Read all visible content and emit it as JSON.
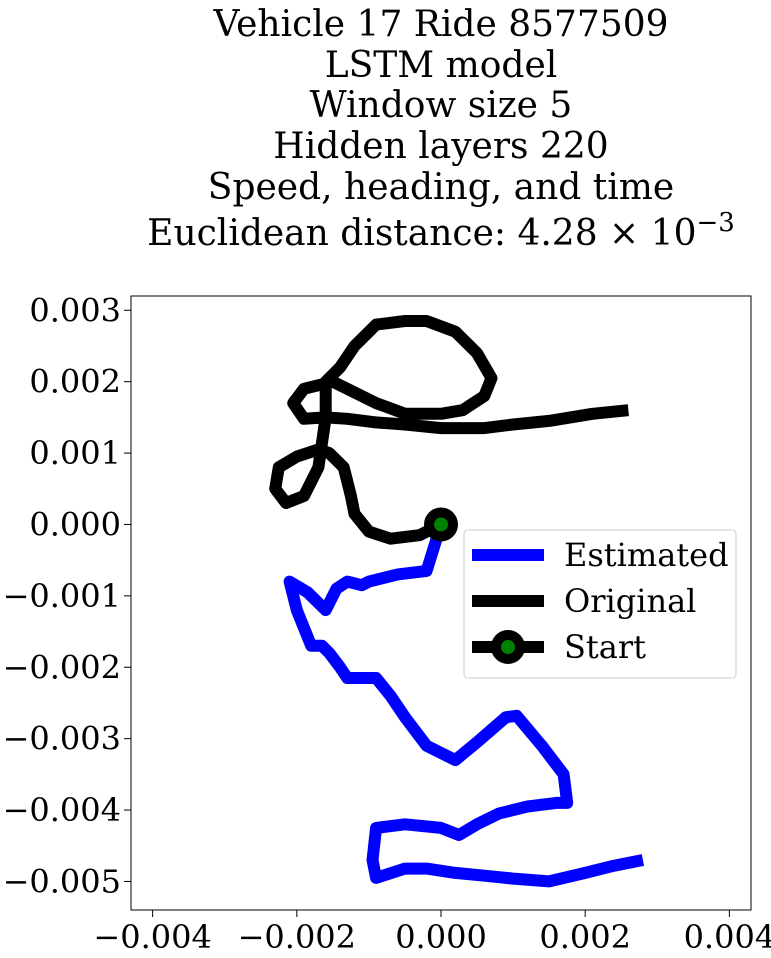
{
  "chart_data": {
    "type": "line",
    "title_lines": [
      "Vehicle 17 Ride 8577509",
      "LSTM model",
      "Window size 5",
      "Hidden layers 220",
      "Speed, heading, and time"
    ],
    "title_distance_prefix": "Euclidean distance: 4.28 × 10",
    "title_distance_exponent": "−3",
    "xlabel": "",
    "ylabel": "",
    "xlim": [
      -0.0043,
      0.0043
    ],
    "ylim": [
      -0.0054,
      0.0032
    ],
    "x_ticks": [
      -0.004,
      -0.002,
      0.0,
      0.002,
      0.004
    ],
    "x_tick_labels": [
      "−0.004",
      "−0.002",
      "0.000",
      "0.002",
      "0.004"
    ],
    "y_ticks": [
      0.003,
      0.002,
      0.001,
      0.0,
      -0.001,
      -0.002,
      -0.003,
      -0.004,
      -0.005
    ],
    "y_tick_labels": [
      "0.003",
      "0.002",
      "0.001",
      "0.000",
      "−0.001",
      "−0.002",
      "−0.003",
      "−0.004",
      "−0.005"
    ],
    "grid": false,
    "legend_position": "center-right",
    "series": [
      {
        "name": "Estimated",
        "color": "#0000ff",
        "points": [
          [
            0.0,
            0.0
          ],
          [
            -0.0002,
            -0.00065
          ],
          [
            -0.0006,
            -0.0007
          ],
          [
            -0.001,
            -0.0008
          ],
          [
            -0.0011,
            -0.00085
          ],
          [
            -0.0013,
            -0.0008
          ],
          [
            -0.00145,
            -0.0009
          ],
          [
            -0.0016,
            -0.0012
          ],
          [
            -0.00185,
            -0.00095
          ],
          [
            -0.0021,
            -0.0008
          ],
          [
            -0.002,
            -0.0012
          ],
          [
            -0.0018,
            -0.0017
          ],
          [
            -0.00165,
            -0.0017
          ],
          [
            -0.00155,
            -0.0018
          ],
          [
            -0.0014,
            -0.002
          ],
          [
            -0.0013,
            -0.00215
          ],
          [
            -0.0009,
            -0.00215
          ],
          [
            -0.0007,
            -0.0024
          ],
          [
            -0.0005,
            -0.0027
          ],
          [
            -0.0002,
            -0.0031
          ],
          [
            0.0002,
            -0.0033
          ],
          [
            0.0005,
            -0.00305
          ],
          [
            0.0009,
            -0.0027
          ],
          [
            0.00105,
            -0.00268
          ],
          [
            0.0014,
            -0.0031
          ],
          [
            0.0017,
            -0.0035
          ],
          [
            0.00175,
            -0.0039
          ],
          [
            0.0016,
            -0.0039
          ],
          [
            0.0012,
            -0.00395
          ],
          [
            0.001,
            -0.004
          ],
          [
            0.0008,
            -0.00405
          ],
          [
            0.0005,
            -0.0042
          ],
          [
            0.00025,
            -0.00435
          ],
          [
            0.0,
            -0.00425
          ],
          [
            -0.0005,
            -0.0042
          ],
          [
            -0.0009,
            -0.00425
          ],
          [
            -0.00095,
            -0.0047
          ],
          [
            -0.0009,
            -0.00495
          ],
          [
            -0.0005,
            -0.00482
          ],
          [
            -0.0002,
            -0.00482
          ],
          [
            0.0002,
            -0.00488
          ],
          [
            0.0006,
            -0.00492
          ],
          [
            0.001,
            -0.00496
          ],
          [
            0.0015,
            -0.005
          ],
          [
            0.002,
            -0.00488
          ],
          [
            0.0024,
            -0.00478
          ],
          [
            0.0028,
            -0.0047
          ]
        ]
      },
      {
        "name": "Original",
        "color": "#000000",
        "points": [
          [
            0.0,
            0.0
          ],
          [
            -0.0003,
            -0.00015
          ],
          [
            -0.0007,
            -0.0002
          ],
          [
            -0.001,
            -0.0001
          ],
          [
            -0.0012,
            0.00015
          ],
          [
            -0.00125,
            0.0004
          ],
          [
            -0.00135,
            0.0008
          ],
          [
            -0.00155,
            0.001
          ],
          [
            -0.0017,
            0.00105
          ],
          [
            -0.002,
            0.00095
          ],
          [
            -0.00225,
            0.0008
          ],
          [
            -0.0023,
            0.0005
          ],
          [
            -0.00215,
            0.0003
          ],
          [
            -0.0019,
            0.0004
          ],
          [
            -0.0017,
            0.0008
          ],
          [
            -0.0016,
            0.0015
          ],
          [
            -0.0016,
            0.002
          ],
          [
            -0.0014,
            0.0022
          ],
          [
            -0.0012,
            0.0025
          ],
          [
            -0.0009,
            0.0028
          ],
          [
            -0.0005,
            0.00285
          ],
          [
            -0.0002,
            0.00285
          ],
          [
            0.0002,
            0.0027
          ],
          [
            0.0005,
            0.0024
          ],
          [
            0.0007,
            0.00205
          ],
          [
            0.0006,
            0.0018
          ],
          [
            0.0003,
            0.0016
          ],
          [
            0.0,
            0.00155
          ],
          [
            -0.0005,
            0.00155
          ],
          [
            -0.0009,
            0.0017
          ],
          [
            -0.0012,
            0.00185
          ],
          [
            -0.0015,
            0.002
          ],
          [
            -0.0019,
            0.0019
          ],
          [
            -0.00205,
            0.0017
          ],
          [
            -0.0019,
            0.00148
          ],
          [
            -0.0016,
            0.0015
          ],
          [
            -0.0013,
            0.00148
          ],
          [
            -0.0009,
            0.00143
          ],
          [
            -0.0005,
            0.0014
          ],
          [
            0.0,
            0.00135
          ],
          [
            0.0006,
            0.00135
          ],
          [
            0.001,
            0.0014
          ],
          [
            0.0015,
            0.00145
          ],
          [
            0.0021,
            0.00155
          ],
          [
            0.0026,
            0.0016
          ]
        ]
      },
      {
        "name": "Start",
        "marker_edge_color": "#000000",
        "marker_face_color": "#008000",
        "points": [
          [
            0.0,
            0.0
          ]
        ]
      }
    ]
  }
}
